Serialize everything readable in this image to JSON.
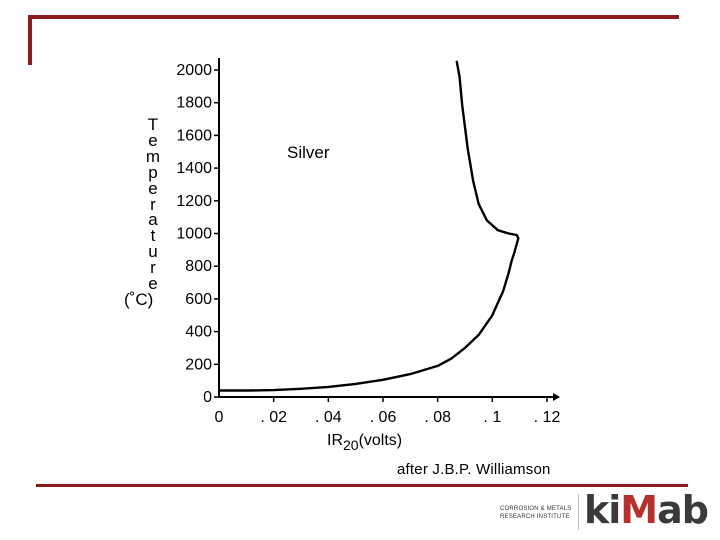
{
  "chart_data": {
    "type": "line",
    "title": "",
    "annotation": "Silver",
    "ylabel_letters": [
      "T",
      "e",
      "m",
      "p",
      "e",
      "r",
      "a",
      "t",
      "u",
      "r",
      "e"
    ],
    "ylabel_unit": "(˚C)",
    "xlabel_main": "IR",
    "xlabel_sub": "20",
    "xlabel_unit": "(volts)",
    "xlim": [
      0,
      0.12
    ],
    "ylim": [
      0,
      2000
    ],
    "x_ticks": [
      0,
      0.02,
      0.04,
      0.06,
      0.08,
      0.1,
      0.12
    ],
    "x_tick_labels": [
      "0",
      ". 02",
      ". 04",
      ". 06",
      ". 08",
      ". 1",
      ". 12"
    ],
    "y_ticks": [
      0,
      200,
      400,
      600,
      800,
      1000,
      1200,
      1400,
      1600,
      1800,
      2000
    ],
    "y_tick_labels": [
      "0",
      "200",
      "400",
      "600",
      "800",
      "1000",
      "1200",
      "1400",
      "1600",
      "1800",
      "2000"
    ],
    "grid": false,
    "series": [
      {
        "x": [
          0,
          0.01,
          0.02,
          0.03,
          0.04,
          0.05,
          0.06,
          0.07,
          0.08,
          0.085,
          0.09,
          0.095,
          0.1,
          0.104,
          0.106,
          0.107,
          0.108,
          0.109,
          0.1095,
          0.109,
          0.106,
          0.102,
          0.098,
          0.095,
          0.093,
          0.091,
          0.089,
          0.088,
          0.087
        ],
        "y": [
          40,
          40,
          42,
          50,
          62,
          80,
          105,
          140,
          190,
          235,
          300,
          380,
          500,
          650,
          760,
          830,
          880,
          940,
          970,
          990,
          1000,
          1020,
          1080,
          1180,
          1320,
          1520,
          1780,
          1960,
          2050
        ]
      }
    ]
  },
  "credit": "after J.B.P. Williamson",
  "logo": {
    "line1": "CORROSION & METALS",
    "line2": "RESEARCH INSTITUTE",
    "word_prefix": "ki",
    "word_accent": "M",
    "word_suffix": "ab",
    "accent_color": "#b7312c"
  },
  "colors": {
    "frame": "#8b1a1a",
    "axis": "#000000"
  }
}
